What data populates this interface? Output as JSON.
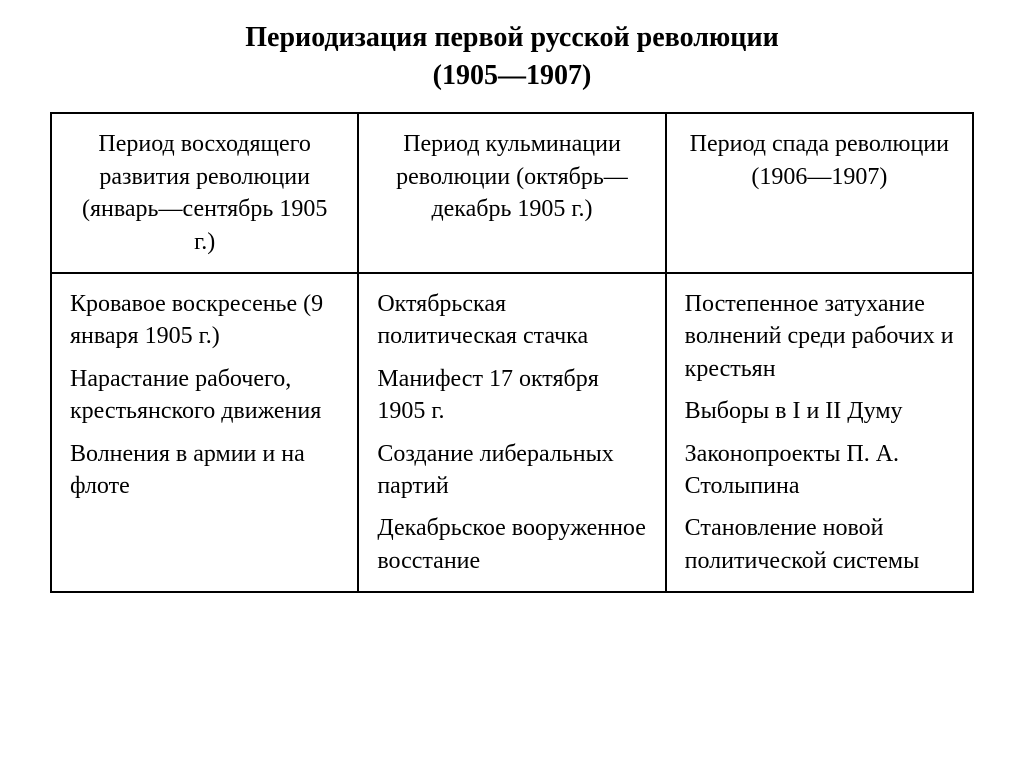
{
  "title": {
    "line1": "Периодизация первой русской революции",
    "line2": "(1905—1907)"
  },
  "table": {
    "type": "table",
    "columns_count": 3,
    "border_color": "#000000",
    "background_color": "#ffffff",
    "text_color": "#000000",
    "title_fontsize": 28,
    "cell_fontsize": 24,
    "headers": [
      "Период восходя­щего развития революции (январь—сентябрь 1905 г.)",
      "Период кульмина­ции революции (октябрь—декабрь 1905 г.)",
      "Период спада революции (1906—1907)"
    ],
    "rows": [
      [
        [
          "Кровавое воскре­сенье (9 января 1905 г.)",
          "Нарастание рабочего, кре­стьянского движения",
          "Волнения в ар­мии и на флоте"
        ],
        [
          "Октябрьская политическая стачка",
          "Манифест 17 октября 1905 г.",
          "Создание либе­ральных партий",
          "Декабрьское вооруженное восстание"
        ],
        [
          "Постепенное затухание волне­ний среди рабо­чих и крестьян",
          "Выборы в I и II Думу",
          "Законопроекты П. А. Столыпина",
          "Становление но­вой политиче­ской системы"
        ]
      ]
    ]
  }
}
